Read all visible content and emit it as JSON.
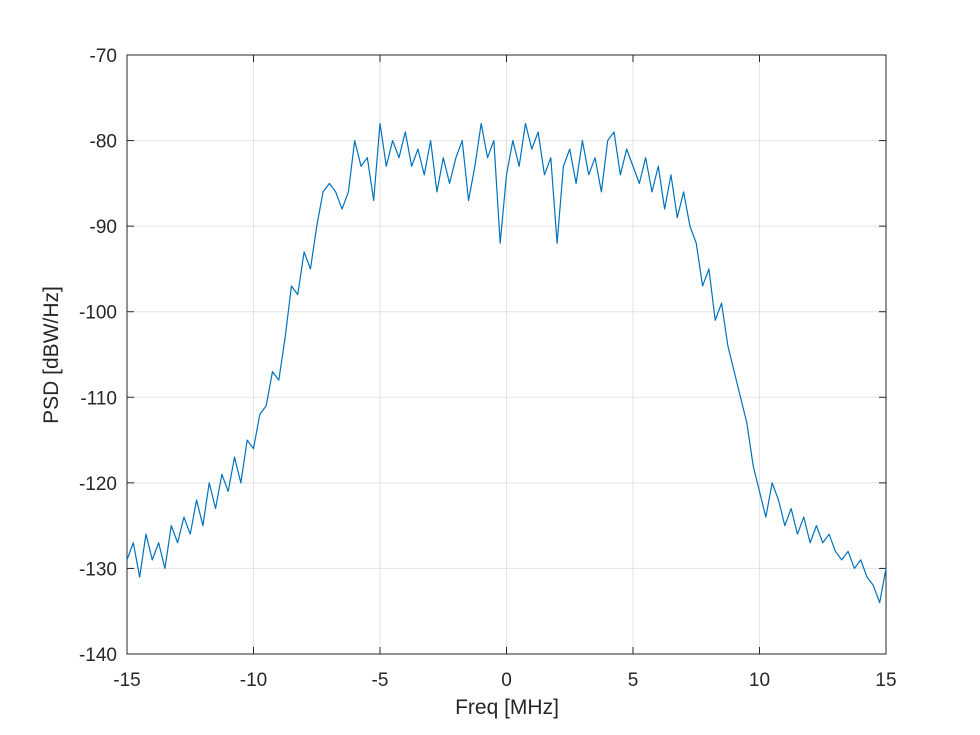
{
  "chart_data": {
    "type": "line",
    "xlabel": "Freq [MHz]",
    "ylabel": "PSD [dBW/Hz]",
    "x": [
      -15,
      -14.75,
      -14.5,
      -14.25,
      -14,
      -13.75,
      -13.5,
      -13.25,
      -13,
      -12.75,
      -12.5,
      -12.25,
      -12,
      -11.75,
      -11.5,
      -11.25,
      -11,
      -10.75,
      -10.5,
      -10.25,
      -10,
      -9.75,
      -9.5,
      -9.25,
      -9,
      -8.75,
      -8.5,
      -8.25,
      -8,
      -7.75,
      -7.5,
      -7.25,
      -7,
      -6.75,
      -6.5,
      -6.25,
      -6,
      -5.75,
      -5.5,
      -5.25,
      -5,
      -4.75,
      -4.5,
      -4.25,
      -4,
      -3.75,
      -3.5,
      -3.25,
      -3,
      -2.75,
      -2.5,
      -2.25,
      -2,
      -1.75,
      -1.5,
      -1.25,
      -1,
      -0.75,
      -0.5,
      -0.25,
      0,
      0.25,
      0.5,
      0.75,
      1,
      1.25,
      1.5,
      1.75,
      2,
      2.25,
      2.5,
      2.75,
      3,
      3.25,
      3.5,
      3.75,
      4,
      4.25,
      4.5,
      4.75,
      5,
      5.25,
      5.5,
      5.75,
      6,
      6.25,
      6.5,
      6.75,
      7,
      7.25,
      7.5,
      7.75,
      8,
      8.25,
      8.5,
      8.75,
      9,
      9.25,
      9.5,
      9.75,
      10,
      10.25,
      10.5,
      10.75,
      11,
      11.25,
      11.5,
      11.75,
      12,
      12.25,
      12.5,
      12.75,
      13,
      13.25,
      13.5,
      13.75,
      14,
      14.25,
      14.5,
      14.75,
      15
    ],
    "series": [
      {
        "color": "#0072bd",
        "values": [
          -129,
          -127,
          -131,
          -126,
          -129,
          -127,
          -130,
          -125,
          -127,
          -124,
          -126,
          -122,
          -125,
          -120,
          -123,
          -119,
          -121,
          -117,
          -120,
          -115,
          -116,
          -112,
          -111,
          -107,
          -108,
          -103,
          -97,
          -98,
          -93,
          -95,
          -90,
          -86,
          -85,
          -86,
          -88,
          -86,
          -80,
          -83,
          -82,
          -87,
          -78,
          -83,
          -80,
          -82,
          -79,
          -83,
          -81,
          -84,
          -80,
          -86,
          -82,
          -85,
          -82,
          -80,
          -87,
          -83,
          -78,
          -82,
          -80,
          -92,
          -84,
          -80,
          -83,
          -78,
          -81,
          -79,
          -84,
          -82,
          -92,
          -83,
          -81,
          -85,
          -80,
          -84,
          -82,
          -86,
          -80,
          -79,
          -84,
          -81,
          -83,
          -85,
          -82,
          -86,
          -83,
          -88,
          -84,
          -89,
          -86,
          -90,
          -92,
          -97,
          -95,
          -101,
          -99,
          -104,
          -107,
          -110,
          -113,
          -118,
          -121,
          -124,
          -120,
          -122,
          -125,
          -123,
          -126,
          -124,
          -127,
          -125,
          -127,
          -126,
          -128,
          -129,
          -128,
          -130,
          -129,
          -131,
          -132,
          -134,
          -130
        ]
      }
    ],
    "xlim": [
      -15,
      15
    ],
    "ylim": [
      -140,
      -70
    ],
    "xticks": [
      -15,
      -10,
      -5,
      0,
      5,
      10,
      15
    ],
    "yticks": [
      -140,
      -130,
      -120,
      -110,
      -100,
      -90,
      -80,
      -70
    ],
    "grid": true
  }
}
